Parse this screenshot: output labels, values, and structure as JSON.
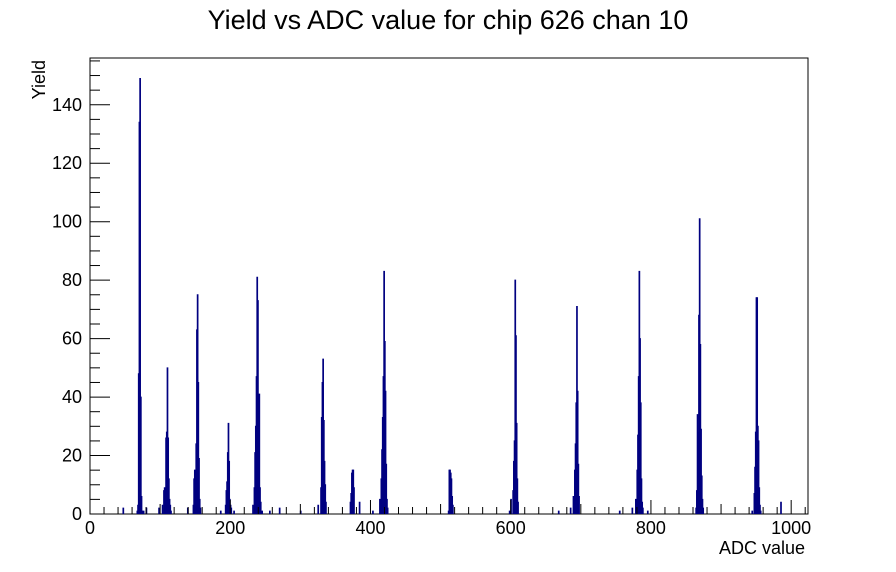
{
  "chart_data": {
    "type": "histogram",
    "title": "Yield vs ADC value for chip 626 chan 10",
    "xlabel": "ADC value",
    "ylabel": "Yield",
    "xlim": [
      0,
      1024
    ],
    "ylim": [
      0,
      156
    ],
    "x_ticks": [
      "0",
      "200",
      "400",
      "600",
      "800",
      "1000"
    ],
    "y_ticks": [
      "0",
      "20",
      "40",
      "60",
      "80",
      "100",
      "120",
      "140"
    ],
    "x_tick_values": [
      0,
      200,
      400,
      600,
      800,
      1000
    ],
    "y_tick_values": [
      0,
      20,
      40,
      60,
      80,
      100,
      120,
      140
    ],
    "line_color": "#000080",
    "bin_width": 1,
    "bins": [
      [
        47,
        2
      ],
      [
        67,
        1
      ],
      [
        68,
        3
      ],
      [
        69,
        48
      ],
      [
        70,
        134
      ],
      [
        71,
        149
      ],
      [
        72,
        40
      ],
      [
        73,
        6
      ],
      [
        74,
        1
      ],
      [
        76,
        1
      ],
      [
        80,
        2
      ],
      [
        98,
        2
      ],
      [
        103,
        3
      ],
      [
        105,
        8
      ],
      [
        106,
        9
      ],
      [
        107,
        5
      ],
      [
        108,
        26
      ],
      [
        109,
        28
      ],
      [
        110,
        50
      ],
      [
        111,
        26
      ],
      [
        112,
        12
      ],
      [
        113,
        5
      ],
      [
        114,
        3
      ],
      [
        115,
        1
      ],
      [
        139,
        2
      ],
      [
        147,
        3
      ],
      [
        148,
        12
      ],
      [
        149,
        15
      ],
      [
        150,
        8
      ],
      [
        151,
        24
      ],
      [
        152,
        63
      ],
      [
        153,
        75
      ],
      [
        154,
        45
      ],
      [
        155,
        19
      ],
      [
        156,
        5
      ],
      [
        157,
        2
      ],
      [
        186,
        1
      ],
      [
        193,
        3
      ],
      [
        194,
        8
      ],
      [
        195,
        11
      ],
      [
        196,
        21
      ],
      [
        197,
        31
      ],
      [
        198,
        18
      ],
      [
        199,
        5
      ],
      [
        200,
        3
      ],
      [
        201,
        2
      ],
      [
        205,
        1
      ],
      [
        232,
        3
      ],
      [
        234,
        9
      ],
      [
        235,
        21
      ],
      [
        236,
        30
      ],
      [
        237,
        47
      ],
      [
        238,
        81
      ],
      [
        239,
        73
      ],
      [
        240,
        35
      ],
      [
        241,
        41
      ],
      [
        242,
        9
      ],
      [
        243,
        4
      ],
      [
        245,
        1
      ],
      [
        256,
        1
      ],
      [
        270,
        2
      ],
      [
        300,
        1
      ],
      [
        325,
        3
      ],
      [
        329,
        9
      ],
      [
        330,
        33
      ],
      [
        331,
        45
      ],
      [
        332,
        53
      ],
      [
        333,
        32
      ],
      [
        334,
        18
      ],
      [
        335,
        10
      ],
      [
        336,
        4
      ],
      [
        371,
        4
      ],
      [
        372,
        7
      ],
      [
        373,
        14
      ],
      [
        374,
        15
      ],
      [
        375,
        15
      ],
      [
        376,
        9
      ],
      [
        384,
        4
      ],
      [
        403,
        1
      ],
      [
        413,
        5
      ],
      [
        415,
        12
      ],
      [
        416,
        22
      ],
      [
        417,
        33
      ],
      [
        418,
        47
      ],
      [
        419,
        83
      ],
      [
        420,
        59
      ],
      [
        421,
        42
      ],
      [
        422,
        17
      ],
      [
        423,
        5
      ],
      [
        424,
        2
      ],
      [
        511,
        1
      ],
      [
        512,
        15
      ],
      [
        513,
        15
      ],
      [
        514,
        14
      ],
      [
        515,
        12
      ],
      [
        516,
        6
      ],
      [
        517,
        3
      ],
      [
        598,
        1
      ],
      [
        600,
        5
      ],
      [
        603,
        8
      ],
      [
        604,
        18
      ],
      [
        605,
        25
      ],
      [
        606,
        80
      ],
      [
        607,
        61
      ],
      [
        608,
        31
      ],
      [
        609,
        12
      ],
      [
        610,
        4
      ],
      [
        668,
        1
      ],
      [
        685,
        2
      ],
      [
        689,
        6
      ],
      [
        691,
        15
      ],
      [
        692,
        24
      ],
      [
        693,
        38
      ],
      [
        694,
        71
      ],
      [
        695,
        42
      ],
      [
        696,
        17
      ],
      [
        697,
        6
      ],
      [
        755,
        1
      ],
      [
        773,
        2
      ],
      [
        778,
        5
      ],
      [
        780,
        15
      ],
      [
        781,
        27
      ],
      [
        782,
        47
      ],
      [
        783,
        83
      ],
      [
        784,
        60
      ],
      [
        785,
        38
      ],
      [
        786,
        12
      ],
      [
        787,
        4
      ],
      [
        788,
        2
      ],
      [
        795,
        1
      ],
      [
        864,
        2
      ],
      [
        865,
        8
      ],
      [
        866,
        34
      ],
      [
        867,
        28
      ],
      [
        868,
        68
      ],
      [
        869,
        101
      ],
      [
        870,
        58
      ],
      [
        871,
        29
      ],
      [
        872,
        13
      ],
      [
        873,
        5
      ],
      [
        874,
        2
      ],
      [
        944,
        1
      ],
      [
        947,
        7
      ],
      [
        948,
        16
      ],
      [
        949,
        28
      ],
      [
        950,
        74
      ],
      [
        951,
        74
      ],
      [
        952,
        30
      ],
      [
        953,
        25
      ],
      [
        954,
        9
      ],
      [
        955,
        3
      ],
      [
        956,
        1
      ],
      [
        985,
        4
      ]
    ]
  }
}
